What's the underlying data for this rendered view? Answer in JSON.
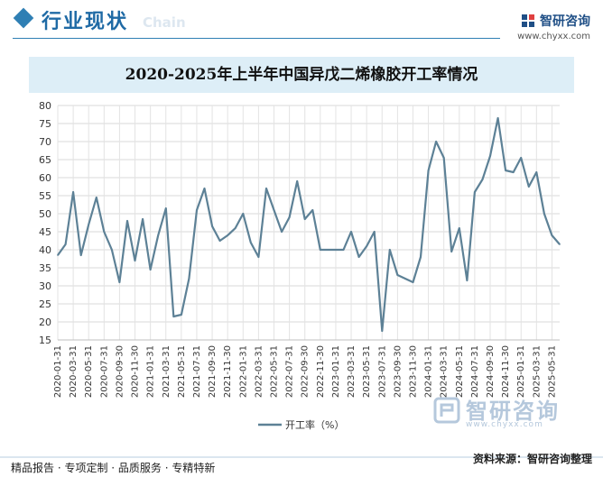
{
  "header": {
    "section_title": "行业现状",
    "ghost_text": "Chain",
    "brand_name": "智研咨询",
    "brand_url": "www.chyxx.com"
  },
  "colors": {
    "line": "#5d8196",
    "accent": "#2f7fb4",
    "title_band": "#ddeef7"
  },
  "chart_data": {
    "type": "line",
    "title": "2020-2025年上半年中国异戊二烯橡胶开工率情况",
    "xlabel": "",
    "ylabel": "",
    "ylim": [
      15,
      80
    ],
    "yticks": [
      15,
      20,
      25,
      30,
      35,
      40,
      45,
      50,
      55,
      60,
      65,
      70,
      75,
      80
    ],
    "grid": true,
    "legend_position": "bottom",
    "x_tick_labels": [
      "2020-01-31",
      "2020-03-31",
      "2020-05-31",
      "2020-07-31",
      "2020-09-30",
      "2020-11-30",
      "2021-01-31",
      "2021-03-31",
      "2021-05-31",
      "2021-07-31",
      "2021-09-30",
      "2021-11-30",
      "2022-01-31",
      "2022-03-31",
      "2022-05-31",
      "2022-07-31",
      "2022-09-30",
      "2022-11-30",
      "2023-01-31",
      "2023-03-31",
      "2023-05-31",
      "2023-07-31",
      "2023-09-30",
      "2023-11-30",
      "2024-01-31",
      "2024-03-31",
      "2024-05-31",
      "2024-07-31",
      "2024-09-30",
      "2024-11-30",
      "2025-01-31",
      "2025-03-31",
      "2025-05-31"
    ],
    "series": [
      {
        "name": "开工率（%）",
        "values": [
          38.5,
          41.5,
          56,
          38.5,
          47,
          54.5,
          45,
          40,
          31,
          48,
          37,
          48.5,
          34.5,
          44,
          51.5,
          21.5,
          22,
          32,
          51,
          57,
          46.5,
          42.5,
          44,
          46,
          50,
          42,
          38,
          57,
          51,
          45,
          49,
          59,
          48.5,
          51,
          40,
          40,
          40,
          40,
          45,
          38,
          41,
          45,
          17.5,
          40,
          33,
          32,
          31,
          38,
          62,
          70,
          65.5,
          39.5,
          46,
          31.5,
          56,
          59.5,
          66,
          76.5,
          62,
          61.5,
          65.5,
          57.5,
          61.5,
          50,
          44,
          41.5
        ]
      }
    ]
  },
  "footer": {
    "left": "精品报告 · 专项定制 · 品质服务 · 专精特新",
    "right": "资料来源：智研咨询整理"
  },
  "watermark": {
    "text": "智研咨询",
    "url": "www.chyxx.com"
  }
}
